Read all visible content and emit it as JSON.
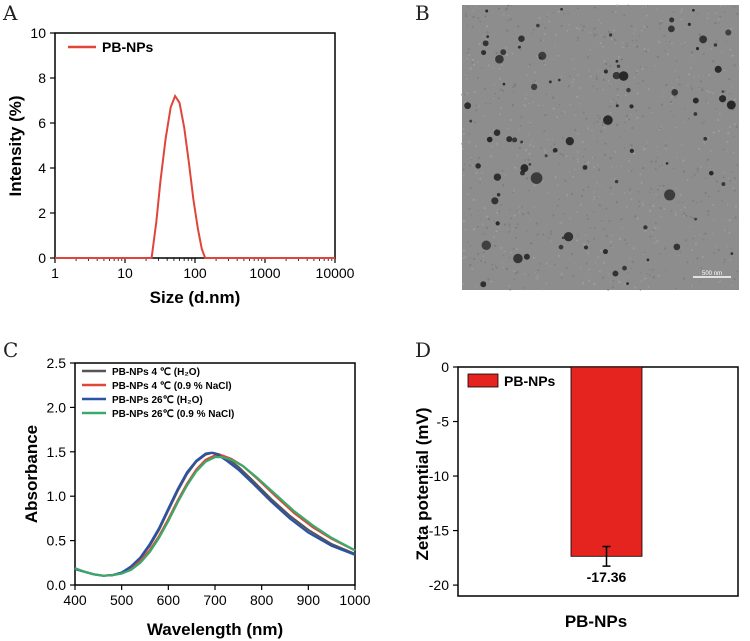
{
  "panels": {
    "A": "A",
    "B": "B",
    "C": "C",
    "D": "D"
  },
  "tem": {
    "scale_bar_label": "500 nm"
  },
  "chart_data": [
    {
      "panel": "A",
      "type": "line",
      "xscale": "log",
      "xlabel": "Size (d.nm)",
      "ylabel": "Intensity (%)",
      "xlim": [
        1,
        10000
      ],
      "ylim": [
        0,
        10
      ],
      "xticks": [
        "1",
        "10",
        "100",
        "1000",
        "10000"
      ],
      "yticks": [
        "0",
        "2",
        "4",
        "6",
        "8",
        "10"
      ],
      "legend": "top-left",
      "series": [
        {
          "name": "PB-NPs",
          "color": "#e0453a",
          "x": [
            1,
            24,
            28,
            32,
            38,
            45,
            52,
            60,
            70,
            82,
            95,
            110,
            125,
            140,
            10000
          ],
          "y": [
            0,
            0,
            1.6,
            3.4,
            5.3,
            6.7,
            7.2,
            6.9,
            5.8,
            4.2,
            2.6,
            1.3,
            0.4,
            0,
            0
          ]
        }
      ]
    },
    {
      "panel": "C",
      "type": "line",
      "xlabel": "Wavelength (nm)",
      "ylabel": "Absorbance",
      "xlim": [
        400,
        1000
      ],
      "ylim": [
        0,
        2.5
      ],
      "xticks": [
        "400",
        "500",
        "600",
        "700",
        "800",
        "900",
        "1000"
      ],
      "yticks": [
        "0.0",
        "0.5",
        "1.0",
        "1.5",
        "2.0",
        "2.5"
      ],
      "legend": "top-left",
      "series": [
        {
          "name": "PB-NPs  4 ℃ (H₂O)",
          "color": "#555555",
          "x": [
            400,
            420,
            440,
            460,
            480,
            500,
            520,
            540,
            560,
            580,
            600,
            620,
            640,
            660,
            680,
            695,
            710,
            730,
            750,
            780,
            820,
            860,
            900,
            950,
            1000
          ],
          "y": [
            0.18,
            0.15,
            0.12,
            0.105,
            0.11,
            0.14,
            0.2,
            0.3,
            0.44,
            0.62,
            0.84,
            1.06,
            1.25,
            1.39,
            1.47,
            1.49,
            1.47,
            1.41,
            1.33,
            1.18,
            0.97,
            0.78,
            0.62,
            0.46,
            0.35
          ]
        },
        {
          "name": "PB-NPs  4 ℃ (0.9 % NaCl)",
          "color": "#e0453a",
          "x": [
            400,
            420,
            440,
            460,
            480,
            500,
            520,
            540,
            560,
            580,
            600,
            620,
            640,
            660,
            680,
            700,
            715,
            735,
            760,
            790,
            830,
            870,
            910,
            950,
            1000
          ],
          "y": [
            0.18,
            0.15,
            0.12,
            0.105,
            0.11,
            0.13,
            0.18,
            0.27,
            0.39,
            0.55,
            0.74,
            0.95,
            1.14,
            1.3,
            1.41,
            1.46,
            1.46,
            1.42,
            1.34,
            1.2,
            1.0,
            0.81,
            0.65,
            0.52,
            0.39
          ]
        },
        {
          "name": "PB-NPs 26℃ (H₂O)",
          "color": "#2a52a5",
          "x": [
            400,
            420,
            440,
            460,
            480,
            500,
            520,
            540,
            560,
            580,
            600,
            620,
            640,
            660,
            680,
            692,
            705,
            725,
            750,
            780,
            820,
            860,
            900,
            950,
            1000
          ],
          "y": [
            0.18,
            0.15,
            0.12,
            0.105,
            0.11,
            0.14,
            0.21,
            0.31,
            0.46,
            0.64,
            0.86,
            1.08,
            1.27,
            1.4,
            1.48,
            1.49,
            1.47,
            1.4,
            1.3,
            1.15,
            0.94,
            0.75,
            0.59,
            0.44,
            0.34
          ]
        },
        {
          "name": "PB-NPs 26℃ (0.9 % NaCl)",
          "color": "#3aaa6a",
          "x": [
            400,
            420,
            440,
            460,
            480,
            500,
            520,
            540,
            560,
            580,
            600,
            620,
            640,
            660,
            680,
            700,
            715,
            735,
            760,
            790,
            830,
            870,
            910,
            950,
            1000
          ],
          "y": [
            0.19,
            0.15,
            0.12,
            0.105,
            0.11,
            0.13,
            0.17,
            0.25,
            0.37,
            0.53,
            0.72,
            0.93,
            1.12,
            1.28,
            1.39,
            1.44,
            1.44,
            1.41,
            1.34,
            1.21,
            1.02,
            0.83,
            0.67,
            0.53,
            0.39
          ]
        }
      ]
    },
    {
      "panel": "D",
      "type": "bar",
      "xlabel": "PB-NPs",
      "ylabel": "Zeta potential (mV)",
      "ylim": [
        -21,
        0
      ],
      "yticks": [
        "0",
        "-5",
        "-10",
        "-15",
        "-20"
      ],
      "legend": "top-left",
      "categories": [
        "PB-NPs"
      ],
      "series": [
        {
          "name": "PB-NPs",
          "color": "#e5231f",
          "values": [
            -17.36
          ],
          "error": [
            0.9
          ]
        }
      ],
      "data_labels": [
        "-17.36"
      ]
    }
  ]
}
